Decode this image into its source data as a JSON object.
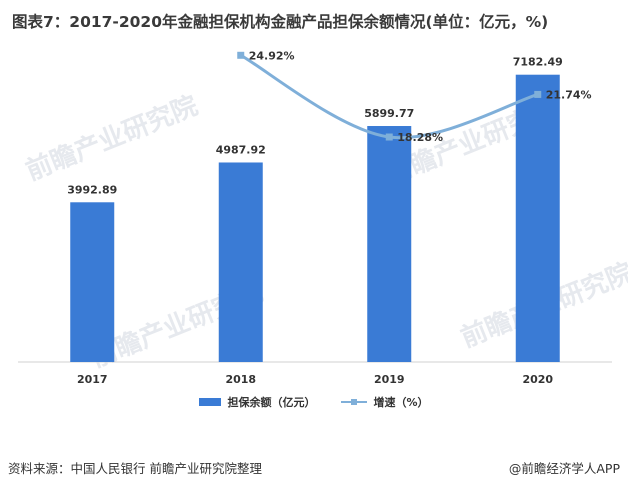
{
  "title": "图表7：2017-2020年金融担保机构金融产品担保余额情况(单位：亿元，%)",
  "watermark": "前瞻产业研究院",
  "source": "资料来源：中国人民银行 前瞻产业研究院整理",
  "brand": "@前瞻经济学人APP",
  "colors": {
    "bar": "#3a7bd5",
    "line": "#7fafd9"
  },
  "chart_data": {
    "type": "bar+line",
    "categories": [
      "2017",
      "2018",
      "2019",
      "2020"
    ],
    "series": [
      {
        "name": "担保余额（亿元）",
        "type": "bar",
        "values": [
          3992.89,
          4987.92,
          5899.77,
          7182.49
        ]
      },
      {
        "name": "增速（%）",
        "type": "line",
        "values": [
          null,
          24.92,
          18.28,
          21.74
        ],
        "labels": [
          "",
          "24.92%",
          "18.28%",
          "21.74%"
        ]
      }
    ],
    "bar_value_labels": [
      "3992.89",
      "4987.92",
      "5899.77",
      "7182.49"
    ],
    "ylim_bar": [
      0,
      8000
    ],
    "ylim_line": [
      0,
      26
    ],
    "legend_position": "bottom",
    "grid": false
  }
}
